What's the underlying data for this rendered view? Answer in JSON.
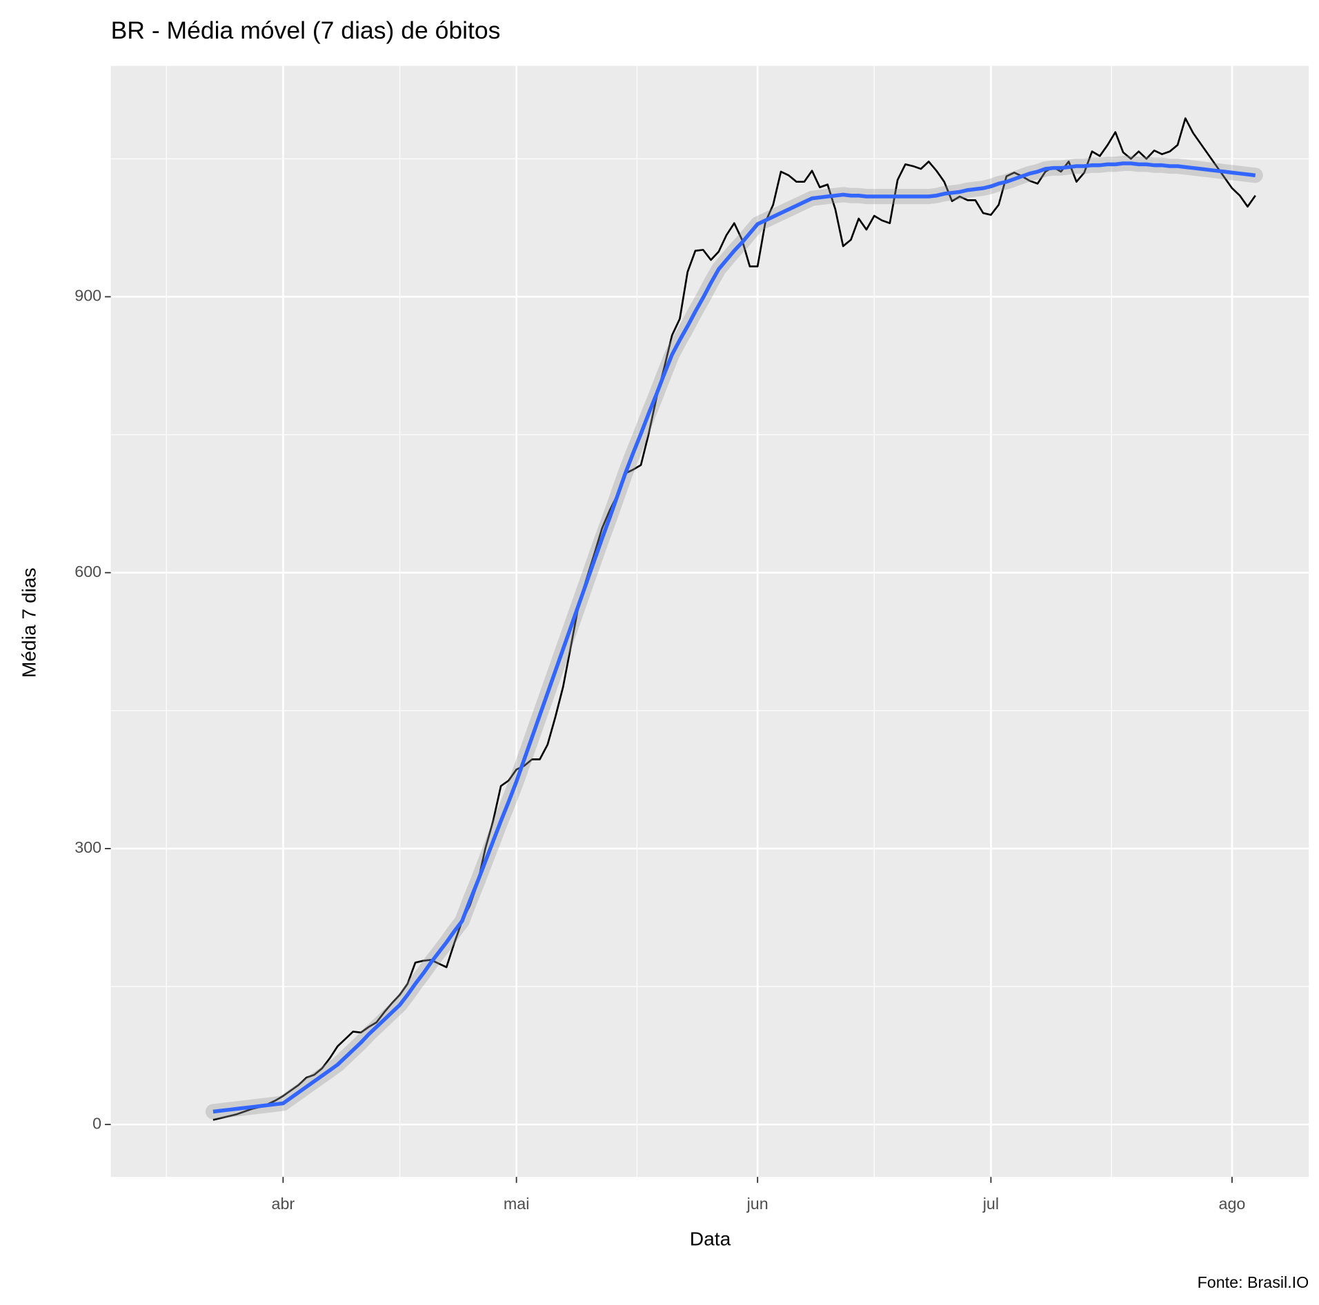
{
  "chart_data": {
    "type": "line",
    "title": "BR - Média móvel (7 dias) de óbitos",
    "x_label": "Data",
    "y_label": "Média 7 dias",
    "caption": "Fonte: Brasil.IO",
    "categories": [
      null,
      null,
      null,
      null,
      null,
      null,
      null,
      null,
      null,
      "abr",
      null,
      null,
      null,
      null,
      null,
      null,
      null,
      null,
      null,
      null,
      null,
      null,
      null,
      null,
      null,
      null,
      null,
      null,
      null,
      null,
      null,
      null,
      null,
      null,
      null,
      null,
      null,
      null,
      null,
      "mai",
      null,
      null,
      null,
      null,
      null,
      null,
      null,
      null,
      null,
      null,
      null,
      null,
      null,
      null,
      null,
      null,
      null,
      null,
      null,
      null,
      null,
      null,
      null,
      null,
      null,
      null,
      null,
      null,
      null,
      null,
      "jun",
      null,
      null,
      null,
      null,
      null,
      null,
      null,
      null,
      null,
      null,
      null,
      null,
      null,
      null,
      null,
      null,
      null,
      null,
      null,
      null,
      null,
      null,
      null,
      null,
      null,
      null,
      null,
      null,
      null,
      "jul",
      null,
      null,
      null,
      null,
      null,
      null,
      null,
      null,
      null,
      null,
      null,
      null,
      null,
      null,
      null,
      null,
      null,
      null,
      null,
      null,
      null,
      null,
      null,
      null,
      null,
      null,
      null,
      null,
      null,
      null,
      "ago",
      null,
      null,
      null
    ],
    "series": [
      {
        "color": "#000000",
        "values": [
          5,
          7,
          9,
          11,
          14,
          17,
          19,
          22,
          26,
          31,
          37,
          43,
          51,
          54,
          61,
          72,
          85,
          93,
          101,
          100,
          106,
          111,
          122,
          132,
          141,
          153,
          176,
          178,
          179,
          175,
          171,
          197,
          221,
          238,
          262,
          300,
          330,
          368,
          374,
          386,
          390,
          397,
          397,
          413,
          443,
          476,
          520,
          565,
          593,
          620,
          648,
          668,
          685,
          708,
          712,
          717,
          751,
          790,
          823,
          858,
          876,
          927,
          950,
          951,
          940,
          949,
          967,
          980,
          962,
          933,
          933,
          981,
          1000,
          1036,
          1032,
          1025,
          1025,
          1037,
          1019,
          1022,
          995,
          955,
          962,
          985,
          973,
          988,
          983,
          980,
          1027,
          1044,
          1042,
          1039,
          1047,
          1037,
          1025,
          1004,
          1009,
          1005,
          1005,
          991,
          989,
          1000,
          1031,
          1035,
          1031,
          1026,
          1023,
          1036,
          1041,
          1036,
          1047,
          1025,
          1035,
          1058,
          1053,
          1065,
          1079,
          1057,
          1050,
          1058,
          1050,
          1059,
          1055,
          1058,
          1065,
          1094,
          1078,
          1066,
          1054,
          1042,
          1030,
          1018,
          1010,
          998,
          1010
        ]
      },
      {
        "color": "#3366FF",
        "values": [
          14,
          15,
          16,
          17,
          18,
          19,
          20,
          21,
          22,
          23,
          29,
          35,
          41,
          47,
          53,
          59,
          65,
          73,
          81,
          89,
          98,
          106,
          114,
          122,
          130,
          141,
          153,
          164,
          176,
          187,
          198,
          210,
          221,
          243,
          264,
          286,
          308,
          330,
          351,
          373,
          397,
          421,
          445,
          469,
          493,
          517,
          541,
          565,
          589,
          613,
          637,
          660,
          684,
          708,
          730,
          751,
          773,
          794,
          816,
          837,
          853,
          868,
          884,
          899,
          915,
          930,
          940,
          950,
          959,
          969,
          979,
          983,
          987,
          991,
          995,
          999,
          1003,
          1007,
          1008,
          1009,
          1010,
          1011,
          1010,
          1010,
          1009,
          1009,
          1009,
          1009,
          1009,
          1009,
          1009,
          1009,
          1009,
          1010,
          1012,
          1013,
          1014,
          1016,
          1017,
          1018,
          1020,
          1023,
          1025,
          1028,
          1031,
          1034,
          1036,
          1039,
          1040,
          1040,
          1041,
          1042,
          1042,
          1043,
          1043,
          1044,
          1044,
          1045,
          1045,
          1044,
          1044,
          1043,
          1043,
          1042,
          1042,
          1041,
          1040,
          1039,
          1038,
          1037,
          1036,
          1035,
          1034,
          1033,
          1032
        ]
      }
    ],
    "ylim": [
      -57,
      1151
    ],
    "yticks": [
      0,
      300,
      600,
      900
    ],
    "grid": true,
    "panel_color": "#EBEBEB"
  }
}
